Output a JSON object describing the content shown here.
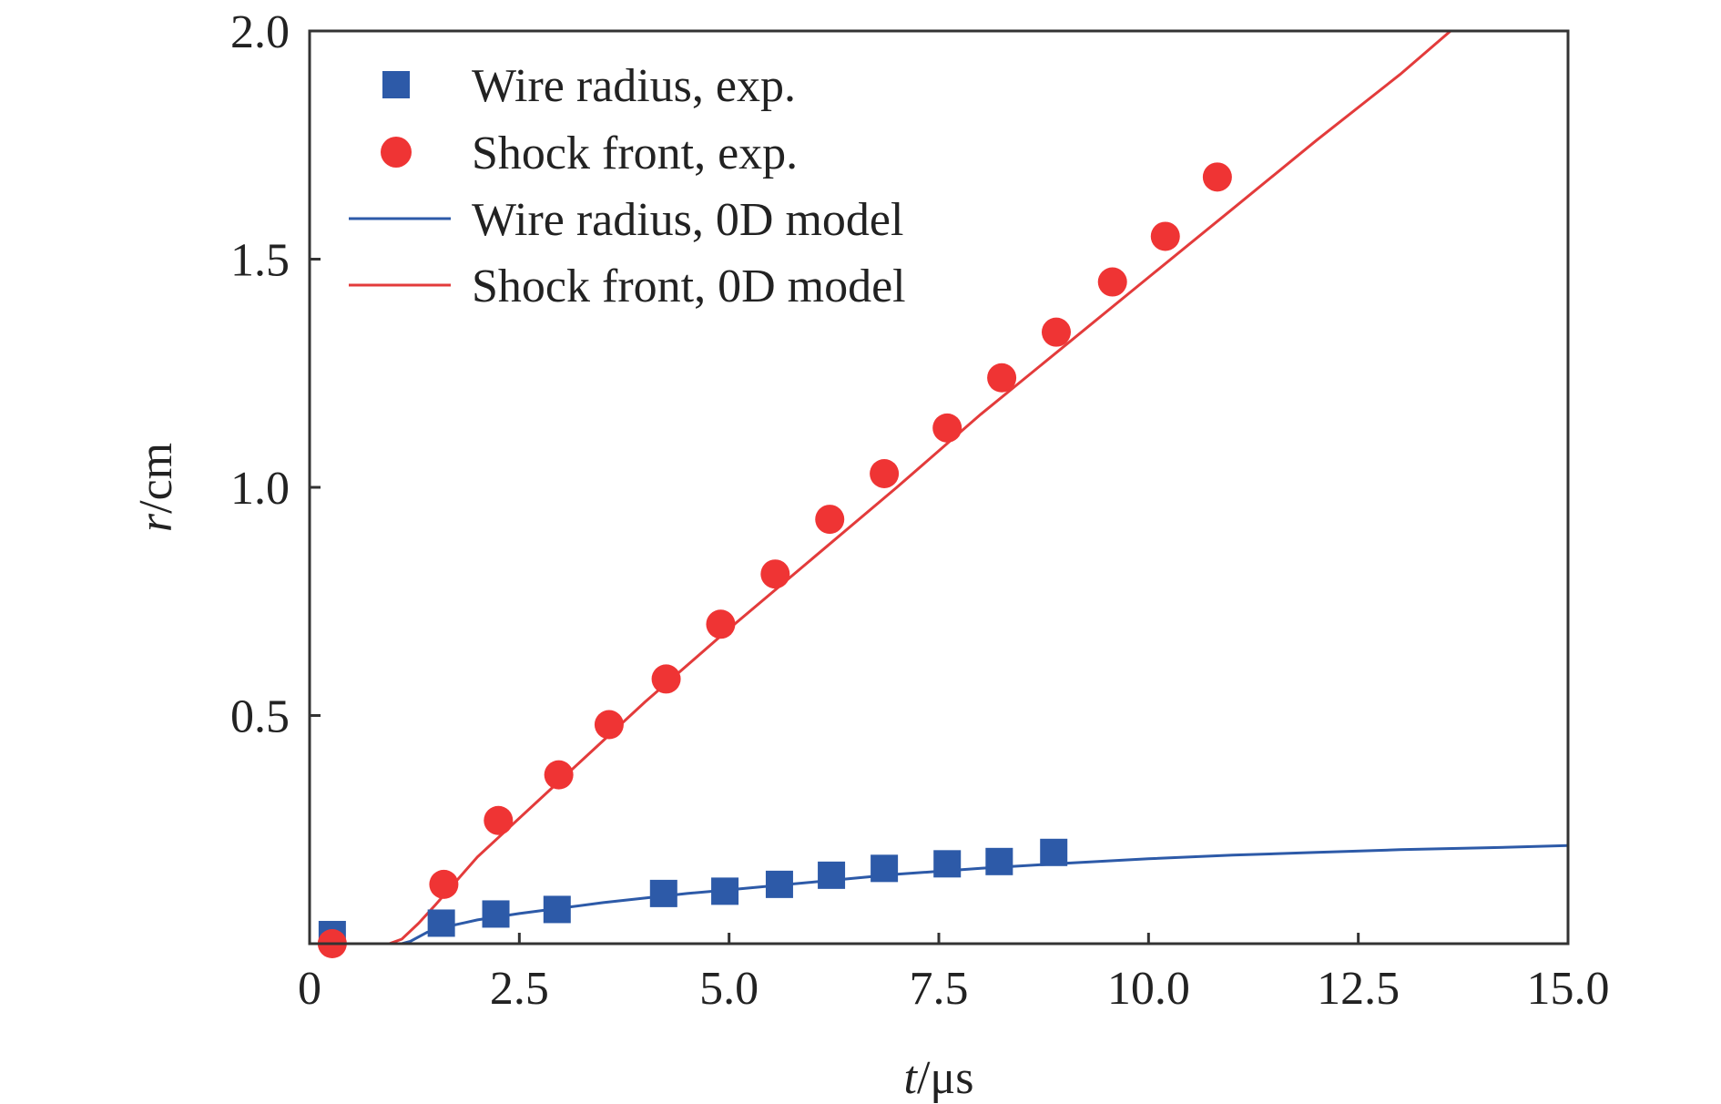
{
  "chart_data": {
    "type": "scatter",
    "title": "",
    "xlabel": {
      "var": "t",
      "unit": "/μs"
    },
    "ylabel": {
      "var": "r",
      "unit": "/cm"
    },
    "xlim": [
      0,
      15
    ],
    "ylim": [
      0,
      2
    ],
    "xticks": [
      0,
      2.5,
      5,
      7.5,
      10,
      12.5,
      15
    ],
    "xtick_labels": [
      "0",
      "2.5",
      "5.0",
      "7.5",
      "10.0",
      "12.5",
      "15.0"
    ],
    "yticks": [
      0.5,
      1.0,
      1.5,
      2.0
    ],
    "ytick_labels": [
      "0.5",
      "1.0",
      "1.5",
      "2.0"
    ],
    "grid": false,
    "legend_position": "top-left",
    "series": [
      {
        "name": "Wire radius, exp.",
        "kind": "points",
        "marker": "square",
        "color": "#2d5aa8",
        "x": [
          0.27,
          1.57,
          2.22,
          2.95,
          4.22,
          4.95,
          5.6,
          6.22,
          6.85,
          7.6,
          8.22,
          8.87
        ],
        "y": [
          0.02,
          0.045,
          0.065,
          0.075,
          0.11,
          0.115,
          0.13,
          0.15,
          0.165,
          0.175,
          0.18,
          0.2
        ]
      },
      {
        "name": "Shock front, exp.",
        "kind": "points",
        "marker": "circle",
        "color": "#ef3434",
        "x": [
          0.27,
          1.6,
          2.25,
          2.97,
          3.57,
          4.25,
          4.9,
          5.55,
          6.2,
          6.85,
          7.6,
          8.25,
          8.9,
          9.57,
          10.2,
          10.82
        ],
        "y": [
          0.0,
          0.13,
          0.27,
          0.37,
          0.48,
          0.58,
          0.7,
          0.81,
          0.93,
          1.03,
          1.13,
          1.24,
          1.34,
          1.45,
          1.55,
          1.68
        ]
      },
      {
        "name": "Wire radius, 0D model",
        "kind": "line",
        "color": "#2d5aa8",
        "x": [
          0,
          1.1,
          1.2,
          1.4,
          1.7,
          2.0,
          2.5,
          3.0,
          3.5,
          4.0,
          4.5,
          5.0,
          6.0,
          7.0,
          8.0,
          9.0,
          10.0,
          11.0,
          12.0,
          13.0,
          14.0,
          15.0
        ],
        "y": [
          0,
          0,
          0.005,
          0.025,
          0.04,
          0.052,
          0.066,
          0.078,
          0.09,
          0.1,
          0.11,
          0.118,
          0.135,
          0.152,
          0.165,
          0.176,
          0.186,
          0.194,
          0.2,
          0.206,
          0.21,
          0.215
        ]
      },
      {
        "name": "Shock front, 0D model",
        "kind": "line",
        "color": "#e33b3b",
        "x": [
          0,
          0.95,
          1.1,
          1.3,
          1.5,
          2.0,
          3.0,
          4.0,
          5.0,
          6.0,
          7.0,
          8.0,
          9.0,
          10.0,
          11.0,
          12.0,
          13.0,
          13.6
        ],
        "y": [
          0,
          0,
          0.01,
          0.045,
          0.085,
          0.19,
          0.36,
          0.53,
          0.69,
          0.845,
          1.0,
          1.16,
          1.31,
          1.46,
          1.61,
          1.76,
          1.905,
          2.0
        ]
      }
    ]
  }
}
